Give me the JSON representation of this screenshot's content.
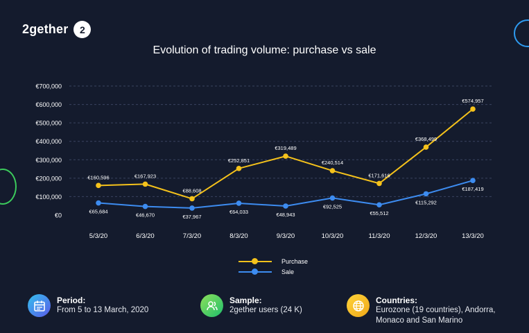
{
  "brand": {
    "name": "2gether",
    "badge": "2"
  },
  "chart_data": {
    "type": "line",
    "title": "Evolution of trading volume: purchase vs sale",
    "categories": [
      "5/3/20",
      "6/3/20",
      "7/3/20",
      "8/3/20",
      "9/3/20",
      "10/3/20",
      "11/3/20",
      "12/3/20",
      "13/3/20"
    ],
    "series": [
      {
        "name": "Purchase",
        "color": "#f5c21b",
        "values": [
          160596,
          167923,
          88608,
          252851,
          319489,
          240514,
          171616,
          368499,
          574957
        ],
        "labels": [
          "€160,596",
          "€167,923",
          "€88,608",
          "€252,851",
          "€319,489",
          "€240,514",
          "€171,616",
          "€368,499",
          "€574,957"
        ]
      },
      {
        "name": "Sale",
        "color": "#3d8cf0",
        "values": [
          65684,
          46670,
          37967,
          64033,
          48943,
          92525,
          55512,
          115292,
          187419
        ],
        "labels": [
          "€65,684",
          "€46,670",
          "€37,967",
          "€64,033",
          "€48,943",
          "€92,525",
          "€55,512",
          "€115,292",
          "€187,419"
        ]
      }
    ],
    "yticks": [
      "€0",
      "€100,000",
      "€200,000",
      "€300,000",
      "€400,000",
      "€500,000",
      "€600,000",
      "€700,000"
    ],
    "ylim": [
      0,
      700000
    ],
    "grid": true,
    "legend_position": "bottom-center"
  },
  "info": {
    "period": {
      "title": "Period:",
      "text": "From 5 to 13 March, 2020",
      "icon": "calendar-icon",
      "color": "#3d8cf0"
    },
    "sample": {
      "title": "Sample:",
      "text": "2gether users (24 K)",
      "icon": "users-icon",
      "color": "#3ccb5c"
    },
    "countries": {
      "title": "Countries:",
      "text1": "Eurozone (19 countries), Andorra,",
      "text2": "Monaco and San Marino",
      "icon": "globe-icon",
      "color": "#f5c21b"
    }
  }
}
